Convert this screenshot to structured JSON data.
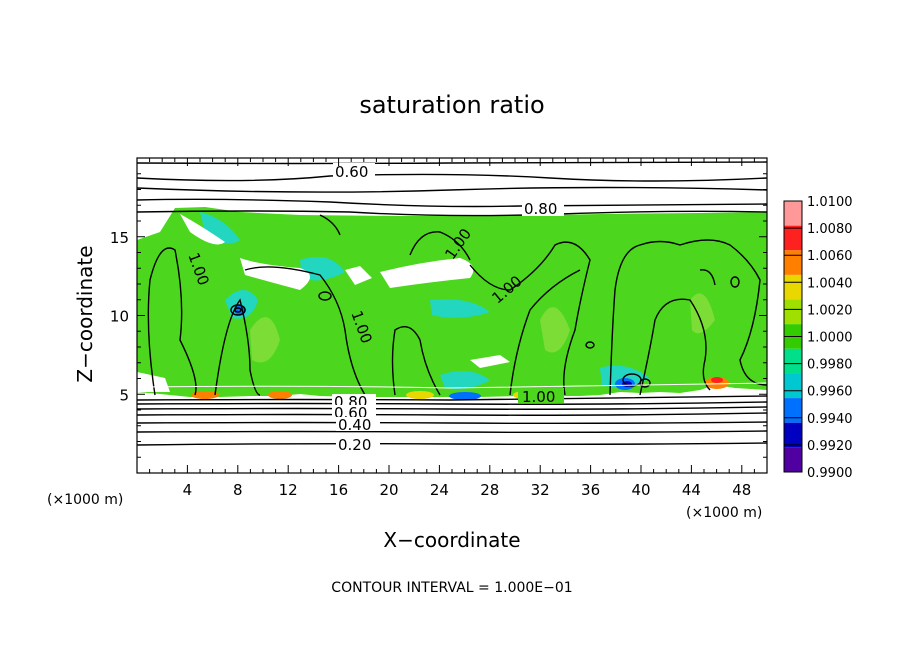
{
  "chart_data": {
    "type": "heatmap",
    "title": "saturation ratio",
    "xlabel": "X−coordinate",
    "ylabel": "Z−coordinate",
    "x_unit": "(×1000 m)",
    "z_unit": "(×1000 m)",
    "xlim": [
      0,
      50
    ],
    "ylim": [
      0,
      20
    ],
    "x_ticks": [
      4,
      8,
      12,
      16,
      20,
      24,
      28,
      32,
      36,
      40,
      44,
      48
    ],
    "y_ticks": [
      5,
      10,
      15
    ],
    "colorbar": {
      "levels": [
        "1.0100",
        "1.0080",
        "1.0060",
        "1.0040",
        "1.0020",
        "1.0000",
        "0.9980",
        "0.9960",
        "0.9940",
        "0.9920",
        "0.9900"
      ],
      "colors": [
        "#ff9999",
        "#ff2020",
        "#ff7f00",
        "#e8d800",
        "#a0e000",
        "#33cc00",
        "#00e08a",
        "#00c8d0",
        "#0070ff",
        "#0000c0",
        "#5000a0"
      ]
    },
    "contour_labels": [
      "0.60",
      "0.80",
      "1.00",
      "1.00",
      "1.00",
      "1.00",
      "1.00",
      "0.80",
      "0.60",
      "0.40",
      "0.20"
    ],
    "footer": "CONTOUR INTERVAL = 1.000E−01"
  }
}
